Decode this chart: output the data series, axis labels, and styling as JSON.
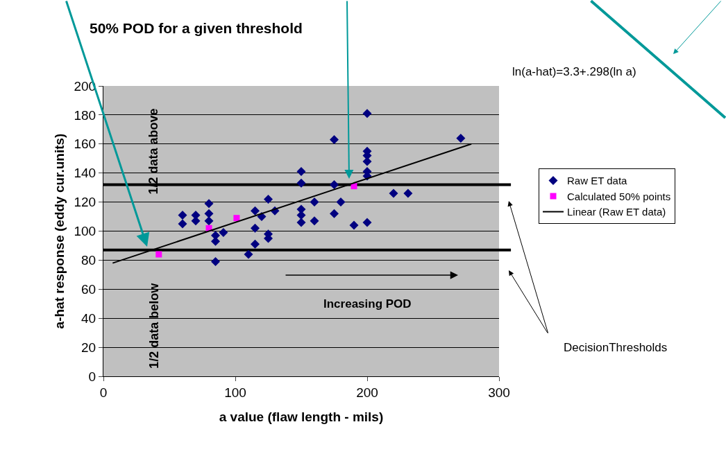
{
  "chart_data": {
    "type": "scatter",
    "title": "50% POD for a given threshold",
    "xlabel": "a value (flaw length - mils)",
    "ylabel": "a-hat response (eddy cur.units)",
    "xlim": [
      0,
      300
    ],
    "xticks": [
      0,
      100,
      200,
      300
    ],
    "ylim": [
      0,
      200
    ],
    "yticks": [
      0,
      20,
      40,
      60,
      80,
      100,
      120,
      140,
      160,
      180,
      200
    ],
    "grid": "y",
    "legend": "right",
    "series": [
      {
        "name": "Raw ET data",
        "color": "#000080",
        "marker": "diamond",
        "x": [
          60,
          60,
          70,
          70,
          80,
          80,
          80,
          85,
          85,
          85,
          91,
          110,
          115,
          115,
          115,
          120,
          125,
          125,
          125,
          130,
          150,
          150,
          150,
          150,
          150,
          160,
          160,
          175,
          175,
          175,
          180,
          190,
          200,
          200,
          200,
          200,
          200,
          200,
          200,
          220,
          231,
          271
        ],
        "values": [
          111,
          105,
          111,
          107,
          119,
          112,
          107,
          97,
          93,
          79,
          99,
          84,
          114,
          102,
          91,
          110,
          122,
          98,
          95,
          114,
          141,
          133,
          115,
          111,
          106,
          120,
          107,
          163,
          132,
          112,
          120,
          104,
          181,
          155,
          152,
          148,
          141,
          138,
          106,
          126,
          126,
          164
        ]
      },
      {
        "name": "Calculated 50% points",
        "color": "#ff00ff",
        "marker": "square",
        "x": [
          42,
          80,
          101,
          190
        ],
        "values": [
          84,
          102,
          109,
          131
        ]
      },
      {
        "name": "Linear (Raw ET data)",
        "type": "line",
        "color": "#000000",
        "marker": "none",
        "x": [
          7,
          279
        ],
        "values": [
          78,
          160
        ]
      }
    ],
    "ref_lines": [
      {
        "axis": "y",
        "value": 132,
        "color": "#000000"
      },
      {
        "axis": "y",
        "value": 87,
        "color": "#000000"
      }
    ],
    "annotations": [
      "ln(a-hat)=3.3+.298(ln a)",
      "1/2 data above",
      "1/2 data below",
      "Increasing POD",
      "DecisionThresholds"
    ]
  }
}
